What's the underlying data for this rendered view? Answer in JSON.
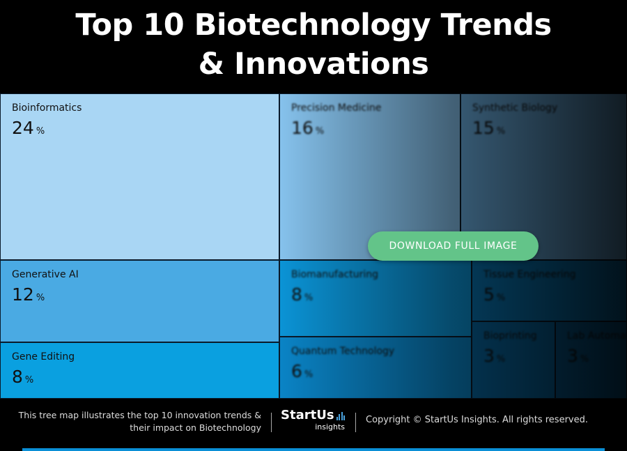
{
  "title_lines": [
    "Top 10 Biotechnology Trends",
    "& Innovations"
  ],
  "chart_data": {
    "type": "treemap",
    "unit": "%",
    "items": [
      {
        "label": "Bioinformatics",
        "value": 24,
        "color": "#a9d6f4",
        "blurred": false
      },
      {
        "label": "Precision Medicine",
        "value": 16,
        "color": "#87c4ef",
        "blurred": true
      },
      {
        "label": "Synthetic Biology",
        "value": 15,
        "color": "#6fb6ea",
        "blurred": true
      },
      {
        "label": "Generative AI",
        "value": 12,
        "color": "#4aaae3",
        "blurred": false
      },
      {
        "label": "Gene Editing",
        "value": 8,
        "color": "#0aa0e0",
        "blurred": false
      },
      {
        "label": "Biomanufacturing",
        "value": 8,
        "color": "#0b95d8",
        "blurred": true
      },
      {
        "label": "Quantum Technology",
        "value": 6,
        "color": "#0a85c8",
        "blurred": true
      },
      {
        "label": "Tissue Engineering",
        "value": 5,
        "color": "#0878b8",
        "blurred": true
      },
      {
        "label": "Bioprinting",
        "value": 3,
        "color": "#076aa6",
        "blurred": true
      },
      {
        "label": "Lab Automation",
        "value": 3,
        "color": "#065f97",
        "blurred": true
      }
    ]
  },
  "download_button": "DOWNLOAD FULL IMAGE",
  "footer": {
    "caption_line1": "This tree map illustrates the top 10 innovation trends &",
    "caption_line2": "their impact on Biotechnology",
    "logo_brand": "StartUs",
    "logo_sub": "insights",
    "copyright": "Copyright © StartUs Insights. All rights reserved."
  },
  "colors": {
    "accent_bar": "#0a8fd6",
    "button": "#63c489"
  }
}
